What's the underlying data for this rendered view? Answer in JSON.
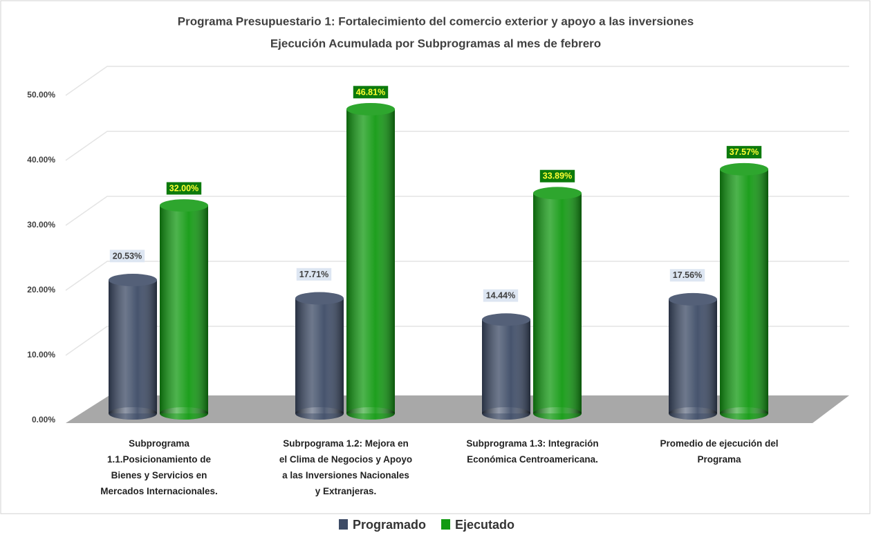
{
  "chart_data": {
    "type": "cylinder_bar",
    "title": "Programa Presupuestario 1: Fortalecimiento del comercio exterior y apoyo a las inversiones",
    "subtitle": "Ejecución Acumulada por Subprogramas al mes de febrero",
    "categories": [
      "Subprograma 1.1.Posicionamiento de Bienes y Servicios en Mercados Internacionales.",
      "Subrpograma 1.2: Mejora en el Clima de Negocios y Apoyo a las Inversiones Nacionales y Extranjeras.",
      "Subprograma 1.3: Integración Económica Centroamericana.",
      "Promedio de ejecución del Programa"
    ],
    "series": [
      {
        "name": "Programado",
        "color": "#3d4b66",
        "values": [
          20.53,
          17.71,
          14.44,
          17.56
        ],
        "value_labels": [
          "20.53%",
          "17.71%",
          "14.44%",
          "17.56%"
        ]
      },
      {
        "name": "Ejecutado",
        "color": "#129a12",
        "values": [
          32.0,
          46.81,
          33.89,
          37.57
        ],
        "value_labels": [
          "32.00%",
          "46.81%",
          "33.89%",
          "37.57%"
        ]
      }
    ],
    "ylim": [
      0,
      50
    ],
    "yticks": [
      {
        "value": 0,
        "label": "0.00%"
      },
      {
        "value": 10,
        "label": "10.00%"
      },
      {
        "value": 20,
        "label": "20.00%"
      },
      {
        "value": 30,
        "label": "30.00%"
      },
      {
        "value": 40,
        "label": "40.00%"
      },
      {
        "value": 50,
        "label": "50.00%"
      }
    ],
    "grid": true,
    "legend": "bottom"
  }
}
